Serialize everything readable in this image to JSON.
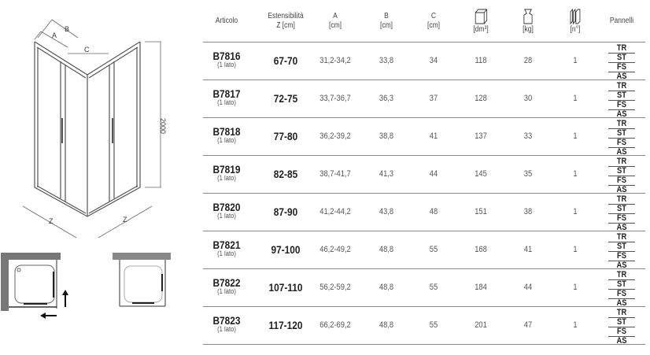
{
  "drawing": {
    "labels": {
      "a": "A",
      "b": "B",
      "c": "C",
      "z_left": "Z",
      "z_right": "Z",
      "height": "2000"
    }
  },
  "table": {
    "headers": {
      "articolo": "Articolo",
      "estensibilita": [
        "Estensibilità",
        "Z [cm]"
      ],
      "a": [
        "A",
        "[cm]"
      ],
      "b": [
        "B",
        "[cm]"
      ],
      "c": [
        "C",
        "[cm]"
      ],
      "volume": "[dm³]",
      "weight": "[kg]",
      "count": "[n°]",
      "pannelli": "Pannelli"
    },
    "header_icons": [
      "box-volume-icon",
      "weight-icon",
      "panels-icon"
    ],
    "pannelli_options": [
      "TR",
      "ST",
      "FS",
      "AS"
    ],
    "rows": [
      {
        "code": "B7816",
        "sub": "(1 lato)",
        "z": "67-70",
        "a": "31,2-34,2",
        "b": "33,8",
        "c": "34",
        "dm3": "118",
        "kg": "28",
        "n": "1"
      },
      {
        "code": "B7817",
        "sub": "(1 lato)",
        "z": "72-75",
        "a": "33,7-36,7",
        "b": "36,3",
        "c": "37",
        "dm3": "128",
        "kg": "30",
        "n": "1"
      },
      {
        "code": "B7818",
        "sub": "(1 lato)",
        "z": "77-80",
        "a": "36,2-39,2",
        "b": "38,8",
        "c": "41",
        "dm3": "137",
        "kg": "33",
        "n": "1"
      },
      {
        "code": "B7819",
        "sub": "(1 lato)",
        "z": "82-85",
        "a": "38,7-41,7",
        "b": "41,3",
        "c": "44",
        "dm3": "145",
        "kg": "35",
        "n": "1"
      },
      {
        "code": "B7820",
        "sub": "(1 lato)",
        "z": "87-90",
        "a": "41,2-44,2",
        "b": "43,8",
        "c": "48",
        "dm3": "151",
        "kg": "38",
        "n": "1"
      },
      {
        "code": "B7821",
        "sub": "(1 lato)",
        "z": "97-100",
        "a": "46,2-49,2",
        "b": "48,8",
        "c": "55",
        "dm3": "168",
        "kg": "41",
        "n": "1"
      },
      {
        "code": "B7822",
        "sub": "(1 lato)",
        "z": "107-110",
        "a": "56,2-59,2",
        "b": "48,8",
        "c": "55",
        "dm3": "184",
        "kg": "44",
        "n": "1"
      },
      {
        "code": "B7823",
        "sub": "(1 lato)",
        "z": "117-120",
        "a": "66,2-69,2",
        "b": "48,8",
        "c": "55",
        "dm3": "201",
        "kg": "47",
        "n": "1"
      }
    ]
  }
}
